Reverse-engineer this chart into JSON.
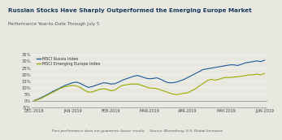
{
  "title": "Russian Stocks Have Sharply Outperformed the Emerging Europe Market",
  "subtitle": "Performance Year-to-Date Through July 5",
  "footnote": "Post performance does not guarantee future results.    Source: Bloomberg, U.S. Global Investors",
  "legend": [
    "MSCI Russia Index",
    "MSCI Emerging Europe Index"
  ],
  "line_colors": [
    "#1e5799",
    "#9aaa00"
  ],
  "x_labels": [
    "DEC-2018",
    "JAN-2019",
    "FEB-2019",
    "MAR-2019",
    "APR-2019",
    "MAY-2019",
    "JUN-2019"
  ],
  "ylim": [
    -5,
    35
  ],
  "yticks": [
    -5,
    0,
    5,
    10,
    15,
    20,
    25,
    30,
    35
  ],
  "ytick_labels": [
    "-5%",
    "0%",
    "5%",
    "10%",
    "15%",
    "20%",
    "25%",
    "30%",
    "35%"
  ],
  "background": "#e8e8e0",
  "plot_bg": "#e8e8e0",
  "title_color": "#1a3a5c",
  "subtitle_color": "#555555",
  "footnote_color": "#555555",
  "russia_data": [
    0.0,
    1.2,
    2.5,
    4.0,
    5.5,
    7.2,
    8.5,
    10.0,
    11.5,
    12.5,
    13.5,
    14.0,
    13.0,
    11.5,
    10.0,
    10.5,
    11.5,
    12.5,
    13.5,
    13.2,
    12.5,
    12.8,
    14.0,
    15.5,
    16.5,
    17.5,
    18.5,
    19.0,
    18.0,
    17.0,
    16.5,
    16.8,
    17.2,
    16.0,
    14.5,
    13.5,
    13.5,
    14.0,
    15.0,
    16.0,
    17.5,
    19.0,
    20.5,
    22.0,
    23.5,
    24.0,
    24.5,
    25.0,
    25.5,
    26.0,
    26.5,
    27.0,
    27.0,
    26.5,
    27.5,
    28.5,
    29.0,
    29.5,
    30.0,
    29.5,
    30.5
  ],
  "europe_data": [
    0.0,
    0.8,
    2.0,
    3.5,
    5.0,
    6.5,
    8.0,
    9.5,
    10.5,
    11.0,
    11.5,
    11.0,
    10.0,
    8.0,
    6.5,
    6.5,
    7.5,
    8.5,
    9.0,
    8.5,
    7.5,
    8.0,
    10.0,
    11.5,
    12.0,
    12.5,
    12.5,
    12.5,
    11.5,
    10.5,
    9.5,
    9.5,
    9.0,
    8.0,
    7.0,
    6.0,
    5.0,
    4.5,
    5.0,
    5.5,
    6.0,
    7.5,
    9.0,
    11.0,
    13.0,
    15.0,
    16.0,
    15.5,
    16.0,
    17.0,
    17.5,
    17.5,
    17.8,
    18.0,
    18.5,
    19.0,
    19.5,
    19.5,
    20.0,
    19.5,
    20.5
  ]
}
